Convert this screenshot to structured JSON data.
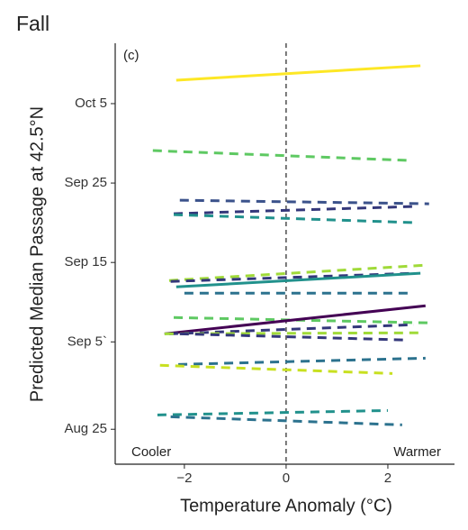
{
  "chart_data": {
    "type": "line",
    "title": "Fall",
    "x_label": "Temperature Anomaly (°C)",
    "y_label": "Predicted Median Passage at 42.5°N",
    "annotations": [
      "(c)",
      "Cooler",
      "Warmer"
    ],
    "xlim": [
      -3.36,
      3.31
    ],
    "xticks": [
      {
        "value": -2,
        "label": "−2"
      },
      0,
      2
    ],
    "ylim": [
      232.6,
      285.6
    ],
    "yticks": [
      {
        "value": 237,
        "label": "Aug 25"
      },
      {
        "value": 248,
        "label": "Sep 5`"
      },
      {
        "value": 258,
        "label": "Sep 15"
      },
      {
        "value": 268,
        "label": "Sep 25"
      },
      {
        "value": 278,
        "label": "Oct 5"
      }
    ],
    "vline": 0,
    "series": [
      {
        "color": "#fde725",
        "dashed": false,
        "x": [
          -2.16,
          2.64
        ],
        "values": [
          280.95,
          282.77
        ]
      },
      {
        "color": "#5ec962",
        "dashed": true,
        "x": [
          -2.62,
          2.42
        ],
        "values": [
          272.09,
          270.84
        ]
      },
      {
        "color": "#3b528b",
        "dashed": true,
        "x": [
          -2.09,
          2.81
        ],
        "values": [
          265.84,
          265.39
        ]
      },
      {
        "color": "#33377a",
        "dashed": true,
        "x": [
          -2.21,
          2.51
        ],
        "values": [
          264.14,
          265.05
        ]
      },
      {
        "color": "#21918c",
        "dashed": true,
        "x": [
          -2.21,
          2.6
        ],
        "values": [
          264.02,
          263.0
        ]
      },
      {
        "color": "#a0da39",
        "dashed": true,
        "x": [
          -2.3,
          2.74
        ],
        "values": [
          255.73,
          257.66
        ]
      },
      {
        "color": "#33377a",
        "dashed": true,
        "x": [
          -2.27,
          2.51
        ],
        "values": [
          255.61,
          256.64
        ]
      },
      {
        "color": "#21918c",
        "dashed": false,
        "x": [
          -2.16,
          2.64
        ],
        "values": [
          254.93,
          256.64
        ]
      },
      {
        "color": "#2c728e",
        "dashed": true,
        "x": [
          -2.0,
          2.51
        ],
        "values": [
          254.14,
          254.14
        ]
      },
      {
        "color": "#5ec962",
        "dashed": true,
        "x": [
          -2.21,
          2.83
        ],
        "values": [
          251.07,
          250.39
        ]
      },
      {
        "color": "#440154",
        "dashed": false,
        "x": [
          -2.39,
          2.74
        ],
        "values": [
          249.02,
          252.55
        ]
      },
      {
        "color": "#33377a",
        "dashed": true,
        "x": [
          -2.3,
          2.51
        ],
        "values": [
          249.02,
          250.16
        ]
      },
      {
        "color": "#a0da39",
        "dashed": true,
        "x": [
          -2.39,
          2.6
        ],
        "values": [
          249.02,
          249.14
        ]
      },
      {
        "color": "#33377a",
        "dashed": true,
        "x": [
          -2.09,
          2.42
        ],
        "values": [
          249.02,
          248.23
        ]
      },
      {
        "color": "#2c728e",
        "dashed": true,
        "x": [
          -2.12,
          2.74
        ],
        "values": [
          245.16,
          245.95
        ]
      },
      {
        "color": "#c8e020",
        "dashed": true,
        "x": [
          -2.48,
          2.09
        ],
        "values": [
          245.05,
          244.02
        ]
      },
      {
        "color": "#21918c",
        "dashed": true,
        "x": [
          -2.53,
          2.0
        ],
        "values": [
          238.8,
          239.36
        ]
      },
      {
        "color": "#2c728e",
        "dashed": true,
        "x": [
          -2.27,
          2.28
        ],
        "values": [
          238.57,
          237.55
        ]
      }
    ]
  }
}
